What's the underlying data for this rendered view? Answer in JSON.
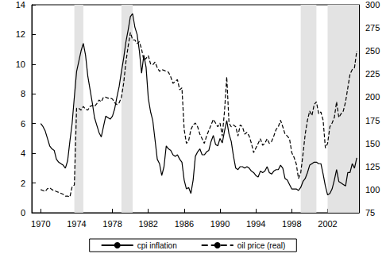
{
  "chart_data": {
    "type": "line",
    "x": [
      1970,
      1970.25,
      1970.5,
      1970.75,
      1971,
      1971.25,
      1971.5,
      1971.75,
      1972,
      1972.25,
      1972.5,
      1972.75,
      1973,
      1973.25,
      1973.5,
      1973.75,
      1974,
      1974.25,
      1974.5,
      1974.75,
      1975,
      1975.25,
      1975.5,
      1975.75,
      1976,
      1976.25,
      1976.5,
      1976.75,
      1977,
      1977.25,
      1977.5,
      1977.75,
      1978,
      1978.25,
      1978.5,
      1978.75,
      1979,
      1979.25,
      1979.5,
      1979.75,
      1980,
      1980.25,
      1980.5,
      1980.75,
      1981,
      1981.25,
      1981.5,
      1981.75,
      1982,
      1982.25,
      1982.5,
      1982.75,
      1983,
      1983.25,
      1983.5,
      1983.75,
      1984,
      1984.25,
      1984.5,
      1984.75,
      1985,
      1985.25,
      1985.5,
      1985.75,
      1986,
      1986.25,
      1986.5,
      1986.75,
      1987,
      1987.25,
      1987.5,
      1987.75,
      1988,
      1988.25,
      1988.5,
      1988.75,
      1989,
      1989.25,
      1989.5,
      1989.75,
      1990,
      1990.25,
      1990.5,
      1990.75,
      1991,
      1991.25,
      1991.5,
      1991.75,
      1992,
      1992.25,
      1992.5,
      1992.75,
      1993,
      1993.25,
      1993.5,
      1993.75,
      1994,
      1994.25,
      1994.5,
      1994.75,
      1995,
      1995.25,
      1995.5,
      1995.75,
      1996,
      1996.25,
      1996.5,
      1996.75,
      1997,
      1997.25,
      1997.5,
      1997.75,
      1998,
      1998.25,
      1998.5,
      1998.75,
      1999,
      1999.25,
      1999.5,
      1999.75,
      2000,
      2000.25,
      2000.5,
      2000.75,
      2001,
      2001.25,
      2001.5,
      2001.75,
      2002,
      2002.25,
      2002.5,
      2002.75,
      2003,
      2003.25,
      2003.5,
      2003.75,
      2004,
      2004.25,
      2004.5,
      2004.75,
      2005,
      2005.25
    ],
    "series": [
      {
        "name": "cpi inflation",
        "color": "#000000",
        "line_style": "solid",
        "axis": "y",
        "values": [
          6.0,
          5.8,
          5.5,
          5.0,
          4.5,
          4.3,
          4.2,
          3.6,
          3.4,
          3.3,
          3.2,
          3.0,
          3.5,
          4.8,
          6.0,
          7.8,
          9.5,
          10.2,
          10.9,
          11.4,
          10.6,
          9.2,
          8.3,
          7.4,
          6.4,
          5.9,
          5.4,
          5.1,
          5.8,
          6.5,
          6.4,
          6.3,
          6.5,
          7.0,
          7.8,
          8.5,
          9.5,
          10.4,
          11.5,
          12.3,
          13.2,
          13.4,
          12.5,
          12.0,
          10.9,
          9.4,
          10.6,
          9.8,
          7.7,
          6.8,
          6.2,
          4.9,
          3.6,
          3.3,
          2.5,
          3.1,
          4.5,
          4.3,
          4.2,
          3.9,
          3.8,
          3.9,
          3.6,
          3.4,
          2.2,
          1.6,
          1.7,
          1.3,
          2.2,
          3.8,
          4.1,
          4.3,
          3.9,
          3.9,
          4.1,
          4.2,
          4.8,
          5.2,
          4.6,
          4.5,
          5.0,
          4.7,
          5.5,
          6.2,
          5.3,
          4.8,
          3.8,
          3.0,
          2.9,
          3.1,
          3.1,
          3.0,
          3.1,
          3.0,
          2.8,
          2.7,
          2.5,
          2.4,
          2.8,
          2.7,
          2.8,
          3.1,
          2.7,
          2.6,
          2.8,
          2.9,
          2.9,
          3.2,
          3.0,
          2.3,
          2.2,
          1.9,
          1.6,
          1.6,
          1.6,
          1.5,
          1.7,
          2.1,
          2.3,
          2.7,
          3.2,
          3.3,
          3.4,
          3.4,
          3.3,
          3.3,
          2.6,
          1.8,
          1.2,
          1.3,
          1.6,
          2.2,
          2.9,
          2.1,
          2.0,
          1.9,
          1.8,
          2.7,
          2.7,
          3.3,
          3.0,
          3.7
        ]
      },
      {
        "name": "oil price (real)",
        "color": "#000000",
        "line_style": "dashed",
        "axis": "y2",
        "values": [
          100,
          99,
          98,
          101,
          102,
          100,
          99,
          98,
          97,
          96,
          95,
          93,
          93,
          92,
          103,
          105,
          188,
          188,
          186,
          190,
          187,
          186,
          190,
          191,
          190,
          193,
          197,
          195,
          200,
          200,
          199,
          199,
          198,
          194,
          192,
          194,
          200,
          215,
          238,
          255,
          270,
          262,
          262,
          258,
          260,
          252,
          240,
          242,
          245,
          236,
          235,
          238,
          232,
          228,
          230,
          229,
          228,
          227,
          222,
          215,
          217,
          219,
          208,
          210,
          165,
          150,
          153,
          165,
          170,
          172,
          168,
          160,
          155,
          150,
          158,
          164,
          170,
          176,
          172,
          168,
          172,
          158,
          185,
          222,
          172,
          168,
          170,
          168,
          158,
          170,
          168,
          160,
          162,
          158,
          150,
          140,
          145,
          150,
          155,
          148,
          150,
          155,
          150,
          152,
          158,
          165,
          168,
          175,
          168,
          160,
          158,
          155,
          140,
          135,
          128,
          112,
          118,
          138,
          160,
          175,
          185,
          180,
          192,
          195,
          182,
          184,
          175,
          145,
          150,
          168,
          172,
          178,
          195,
          178,
          182,
          185,
          195,
          210,
          225,
          230,
          232,
          250
        ]
      }
    ],
    "shaded_periods": [
      [
        1973.75,
        1974.75
      ],
      [
        1979.0,
        1980.25
      ],
      [
        1999.0,
        2000.75
      ],
      [
        2002.0,
        2005.5
      ]
    ],
    "shaded_color": "#e3e3e3",
    "xlim": [
      1969,
      2005.5
    ],
    "xticks": [
      1970,
      1974,
      1978,
      1982,
      1986,
      1990,
      1994,
      1998,
      2002
    ],
    "ylim": [
      0,
      14
    ],
    "yticks": [
      0,
      2,
      4,
      6,
      8,
      10,
      12,
      14
    ],
    "y2lim": [
      75,
      300
    ],
    "y2ticks": [
      75,
      100,
      125,
      150,
      175,
      200,
      225,
      250,
      275,
      300
    ],
    "grid": false,
    "legend": "bottom"
  }
}
